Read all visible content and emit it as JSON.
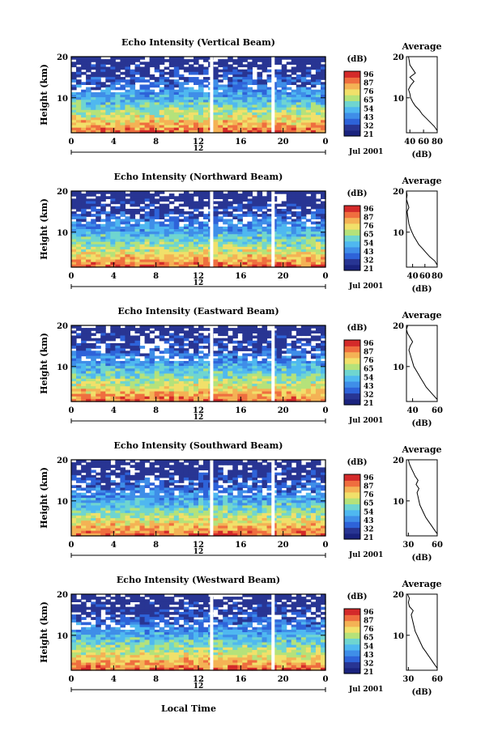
{
  "figure": {
    "xaxis_title": "Local Time",
    "date_label": "Jul 2001",
    "cb_unit": "(dB)",
    "avg_title": "Average",
    "avg_xlabel": "(dB)"
  },
  "colors": {
    "colormap": [
      "#1a237e",
      "#283593",
      "#2e63d9",
      "#3f8ee8",
      "#4fb8f0",
      "#6fd5d0",
      "#b5e27a",
      "#f1e06a",
      "#f4b255",
      "#ef6e3f",
      "#d42a2a"
    ],
    "blank": "#ffffff",
    "line": "#000000"
  },
  "chart_data": [
    {
      "type": "heatmap",
      "title": "Echo Intensity (Vertical Beam)",
      "ylabel": "Height (km)",
      "xticks": [
        "0",
        "4",
        "8",
        "12",
        "16",
        "20",
        "0"
      ],
      "x_center_label": "12",
      "yticks": [
        "20",
        "10"
      ],
      "xlim": [
        0,
        24
      ],
      "ylim": [
        1.5,
        20
      ],
      "colorbar": {
        "label": "(dB)",
        "ticks": [
          "96",
          "87",
          "76",
          "65",
          "54",
          "43",
          "32",
          "21"
        ]
      },
      "average": {
        "title": "Average",
        "xlabel": "(dB)",
        "xticks": [
          "40",
          "60",
          "80"
        ],
        "xlim": [
          35,
          80
        ],
        "yticks": [
          "20",
          "10"
        ],
        "ylim": [
          1.5,
          20
        ],
        "profile": [
          [
            80,
            2
          ],
          [
            76,
            3
          ],
          [
            70,
            4
          ],
          [
            64,
            5
          ],
          [
            58,
            6
          ],
          [
            54,
            7
          ],
          [
            48,
            8
          ],
          [
            44,
            9
          ],
          [
            41,
            10
          ],
          [
            40,
            11
          ],
          [
            38,
            12
          ],
          [
            41,
            13
          ],
          [
            46,
            14
          ],
          [
            40,
            15
          ],
          [
            48,
            16
          ],
          [
            44,
            17
          ],
          [
            40,
            18
          ],
          [
            39,
            19
          ],
          [
            38,
            20
          ]
        ]
      }
    },
    {
      "type": "heatmap",
      "title": "Echo Intensity (Northward Beam)",
      "ylabel": "Height (km)",
      "xticks": [
        "0",
        "4",
        "8",
        "12",
        "16",
        "20",
        "0"
      ],
      "x_center_label": "12",
      "yticks": [
        "20",
        "10"
      ],
      "xlim": [
        0,
        24
      ],
      "ylim": [
        1.5,
        20
      ],
      "colorbar": {
        "label": "(dB)",
        "ticks": [
          "96",
          "87",
          "76",
          "65",
          "54",
          "43",
          "32",
          "21"
        ]
      },
      "average": {
        "title": "Average",
        "xlabel": "(dB)",
        "xticks": [
          "40",
          "60",
          "80"
        ],
        "xlim": [
          30,
          80
        ],
        "yticks": [
          "20",
          "10"
        ],
        "ylim": [
          1.5,
          20
        ],
        "profile": [
          [
            80,
            2
          ],
          [
            76,
            3
          ],
          [
            68,
            4
          ],
          [
            62,
            5
          ],
          [
            56,
            6
          ],
          [
            50,
            7
          ],
          [
            46,
            8
          ],
          [
            42,
            9
          ],
          [
            39,
            10
          ],
          [
            36,
            11
          ],
          [
            34,
            12
          ],
          [
            33,
            13
          ],
          [
            32,
            14
          ],
          [
            31,
            15
          ],
          [
            34,
            16
          ],
          [
            32,
            17
          ],
          [
            30,
            18
          ],
          [
            31,
            19
          ],
          [
            30,
            20
          ]
        ]
      }
    },
    {
      "type": "heatmap",
      "title": "Echo Intensity (Eastward Beam)",
      "ylabel": "Height (km)",
      "xticks": [
        "0",
        "4",
        "8",
        "12",
        "16",
        "20",
        "0"
      ],
      "x_center_label": "12",
      "yticks": [
        "20",
        "10"
      ],
      "xlim": [
        0,
        24
      ],
      "ylim": [
        1.5,
        20
      ],
      "colorbar": {
        "label": "(dB)",
        "ticks": [
          "96",
          "87",
          "76",
          "65",
          "54",
          "43",
          "32",
          "21"
        ]
      },
      "average": {
        "title": "Average",
        "xlabel": "(dB)",
        "xticks": [
          "40",
          "60"
        ],
        "xlim": [
          35,
          60
        ],
        "yticks": [
          "20",
          "10"
        ],
        "ylim": [
          1.5,
          20
        ],
        "profile": [
          [
            60,
            2
          ],
          [
            57,
            3
          ],
          [
            54,
            4
          ],
          [
            51,
            5
          ],
          [
            49,
            6
          ],
          [
            47,
            7
          ],
          [
            45,
            8
          ],
          [
            43,
            9
          ],
          [
            41,
            10
          ],
          [
            40,
            11
          ],
          [
            39,
            12
          ],
          [
            38,
            13
          ],
          [
            37,
            14
          ],
          [
            38,
            15
          ],
          [
            40,
            16
          ],
          [
            38,
            17
          ],
          [
            36,
            18
          ],
          [
            35,
            19
          ],
          [
            36,
            20
          ]
        ]
      }
    },
    {
      "type": "heatmap",
      "title": "Echo Intensity (Southward Beam)",
      "ylabel": "Height (km)",
      "xticks": [
        "0",
        "4",
        "8",
        "12",
        "16",
        "20",
        "0"
      ],
      "x_center_label": "12",
      "yticks": [
        "20",
        "10"
      ],
      "xlim": [
        0,
        24
      ],
      "ylim": [
        1.5,
        20
      ],
      "colorbar": {
        "label": "(dB)",
        "ticks": [
          "96",
          "87",
          "76",
          "65",
          "54",
          "43",
          "32",
          "21"
        ]
      },
      "average": {
        "title": "Average",
        "xlabel": "(dB)",
        "xticks": [
          "30",
          "60"
        ],
        "xlim": [
          28,
          60
        ],
        "yticks": [
          "20",
          "10"
        ],
        "ylim": [
          1.5,
          20
        ],
        "profile": [
          [
            60,
            2
          ],
          [
            57,
            3
          ],
          [
            54,
            4
          ],
          [
            51,
            5
          ],
          [
            48,
            6
          ],
          [
            46,
            7
          ],
          [
            44,
            8
          ],
          [
            42,
            9
          ],
          [
            41,
            10
          ],
          [
            40,
            11
          ],
          [
            39,
            12
          ],
          [
            41,
            13
          ],
          [
            38,
            14
          ],
          [
            40,
            15
          ],
          [
            37,
            16
          ],
          [
            35,
            17
          ],
          [
            33,
            18
          ],
          [
            31,
            19
          ],
          [
            30,
            20
          ]
        ]
      }
    },
    {
      "type": "heatmap",
      "title": "Echo Intensity (Westward Beam)",
      "ylabel": "Height (km)",
      "xticks": [
        "0",
        "4",
        "8",
        "12",
        "16",
        "20",
        "0"
      ],
      "x_center_label": "12",
      "yticks": [
        "20",
        "10"
      ],
      "xlim": [
        0,
        24
      ],
      "ylim": [
        1.5,
        20
      ],
      "colorbar": {
        "label": "(dB)",
        "ticks": [
          "96",
          "87",
          "76",
          "65",
          "54",
          "43",
          "32",
          "21"
        ]
      },
      "average": {
        "title": "Average",
        "xlabel": "(dB)",
        "xticks": [
          "30",
          "60"
        ],
        "xlim": [
          28,
          60
        ],
        "yticks": [
          "20",
          "10"
        ],
        "ylim": [
          1.5,
          20
        ],
        "profile": [
          [
            60,
            2
          ],
          [
            57,
            3
          ],
          [
            54,
            4
          ],
          [
            51,
            5
          ],
          [
            48,
            6
          ],
          [
            45,
            7
          ],
          [
            43,
            8
          ],
          [
            41,
            9
          ],
          [
            39,
            10
          ],
          [
            37,
            11
          ],
          [
            36,
            12
          ],
          [
            35,
            13
          ],
          [
            34,
            14
          ],
          [
            33,
            15
          ],
          [
            35,
            16
          ],
          [
            31,
            17
          ],
          [
            30,
            18
          ],
          [
            31,
            19
          ],
          [
            29,
            20
          ]
        ]
      }
    }
  ]
}
